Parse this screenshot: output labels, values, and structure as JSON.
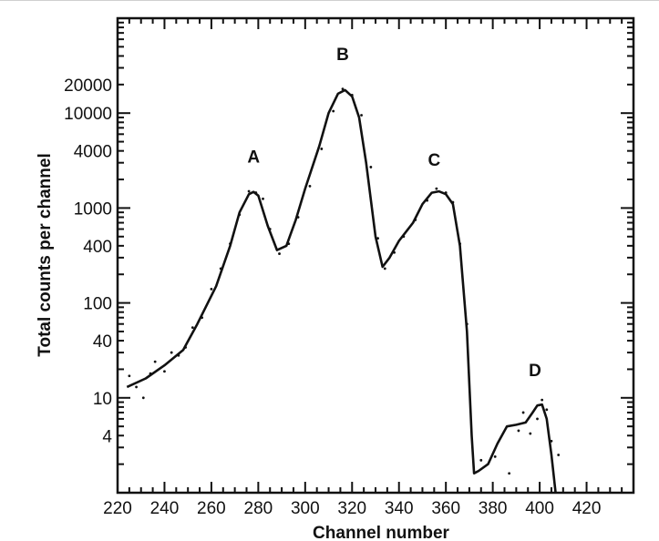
{
  "chart_data": {
    "type": "line",
    "title": "",
    "xlabel": "Channel number",
    "ylabel": "Total counts per channel",
    "y_scale": "log",
    "xlim": [
      220,
      440
    ],
    "ylim": [
      1,
      100000
    ],
    "x_ticks": [
      220,
      240,
      260,
      280,
      300,
      320,
      340,
      360,
      380,
      400,
      420
    ],
    "y_ticks": [
      4,
      10,
      40,
      100,
      400,
      1000,
      4000,
      10000,
      20000
    ],
    "y_tick_labels": [
      "4",
      "10",
      "40",
      "100",
      "400",
      "1000",
      "4000",
      "10000",
      "20000"
    ],
    "grid": false,
    "series": [
      {
        "style": "solid",
        "x": [
          224,
          232,
          240,
          248,
          254,
          262,
          268,
          272,
          276,
          278,
          280,
          284,
          288,
          292,
          296,
          300,
          306,
          310,
          314,
          317,
          320,
          323,
          326,
          330,
          333,
          336,
          340,
          346,
          350,
          354,
          357,
          360,
          363,
          366,
          369,
          371,
          372,
          374,
          378,
          382,
          386,
          390,
          394,
          397,
          399,
          401,
          403,
          405,
          407
        ],
        "y": [
          13,
          16,
          22,
          32,
          60,
          150,
          400,
          900,
          1400,
          1480,
          1350,
          650,
          360,
          400,
          750,
          1600,
          4500,
          10000,
          16000,
          17500,
          15000,
          9000,
          3000,
          500,
          240,
          300,
          450,
          700,
          1100,
          1450,
          1500,
          1400,
          1100,
          400,
          50,
          4,
          1.6,
          1.7,
          2,
          3.3,
          5,
          5.2,
          5.5,
          7,
          8.3,
          8.5,
          6,
          2.5,
          0.9
        ]
      },
      {
        "style": "points",
        "x": [
          225,
          228,
          231,
          234,
          236,
          240,
          243,
          246,
          249,
          252,
          256,
          260,
          264,
          268,
          272,
          276,
          279,
          282,
          285,
          289,
          293,
          297,
          302,
          307,
          312,
          316,
          320,
          324,
          328,
          331,
          334,
          338,
          342,
          347,
          352,
          356,
          360,
          363,
          366,
          369,
          375,
          381,
          387,
          391,
          393,
          396,
          399,
          401,
          403,
          405,
          408
        ],
        "y": [
          17,
          13,
          10,
          18,
          24,
          19,
          30,
          28,
          34,
          55,
          70,
          140,
          230,
          420,
          850,
          1500,
          1450,
          1250,
          600,
          330,
          420,
          800,
          1700,
          4200,
          10500,
          18000,
          15500,
          9500,
          2700,
          480,
          230,
          340,
          500,
          750,
          1200,
          1600,
          1450,
          1150,
          420,
          60,
          2.2,
          2.4,
          1.6,
          4.5,
          7,
          4.2,
          6,
          9.5,
          7.5,
          3.5,
          2.5
        ]
      }
    ],
    "annotations": [
      {
        "text": "A",
        "x": 278,
        "y": 3000
      },
      {
        "text": "B",
        "x": 316,
        "y": 36000
      },
      {
        "text": "C",
        "x": 355,
        "y": 2800
      },
      {
        "text": "D",
        "x": 398,
        "y": 17
      }
    ]
  }
}
